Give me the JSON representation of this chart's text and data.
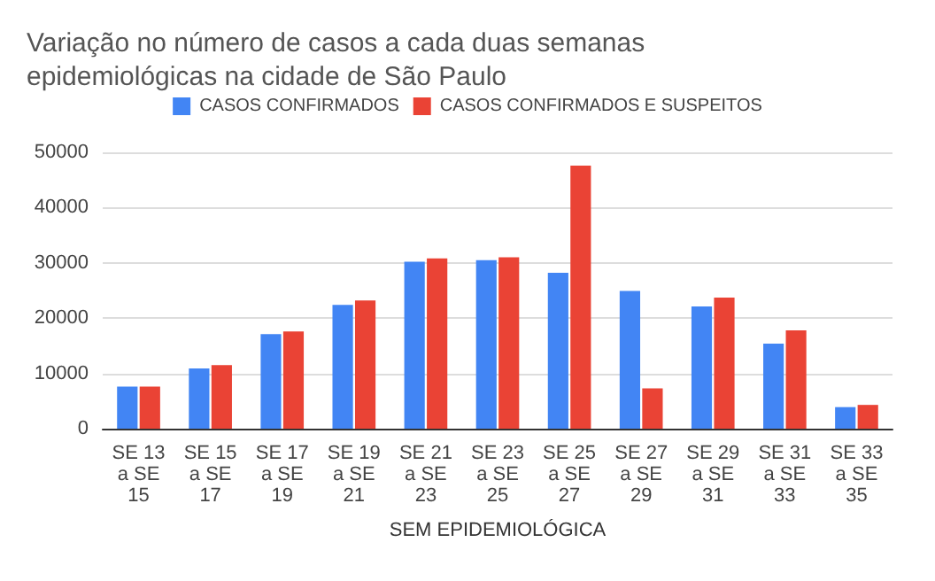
{
  "chart_data": {
    "type": "bar",
    "title": "Variação no número de casos a cada duas semanas\nepidemiológicas na cidade de São Paulo",
    "xlabel": "SEM EPIDEMIOLÓGICA",
    "categories": [
      "SE 13\na SE\n15",
      "SE 15\na SE\n17",
      "SE 17\na SE\n19",
      "SE 19\na SE\n21",
      "SE 21\na SE\n23",
      "SE 23\na SE\n25",
      "SE 25\na SE\n27",
      "SE 27\na SE\n29",
      "SE 29\na SE\n31",
      "SE 31\na SE\n33",
      "SE 33\na SE\n35"
    ],
    "series": [
      {
        "name": "CASOS CONFIRMADOS",
        "color": "#4285f4",
        "values": [
          7600,
          10900,
          17100,
          22400,
          30200,
          30500,
          28200,
          24900,
          22100,
          15400,
          3900
        ]
      },
      {
        "name": "CASOS CONFIRMADOS E SUSPEITOS",
        "color": "#ea4335",
        "values": [
          7600,
          11500,
          17600,
          23200,
          30800,
          31000,
          47600,
          7300,
          23700,
          17800,
          4300
        ]
      }
    ],
    "ylim": [
      0,
      50000
    ],
    "yticks": [
      0,
      10000,
      20000,
      30000,
      40000,
      50000
    ],
    "grid": "y",
    "legend": "top"
  }
}
